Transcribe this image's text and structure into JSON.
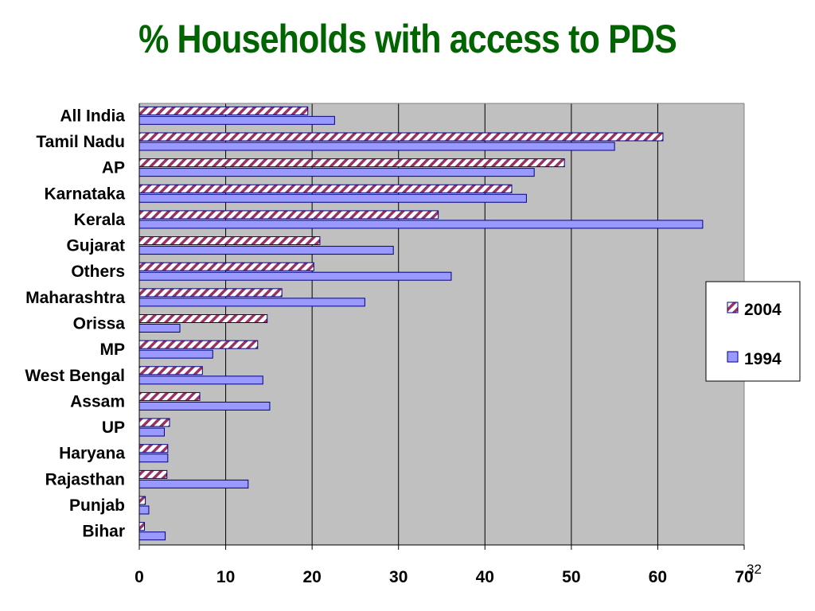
{
  "slide": {
    "title": "% Households with access to PDS",
    "page_number": "32"
  },
  "chart_data": {
    "type": "bar",
    "orientation": "horizontal",
    "title": "% Households with access to PDS",
    "xlabel": "",
    "ylabel": "",
    "xlim": [
      0,
      70
    ],
    "x_ticks": [
      0,
      10,
      20,
      30,
      40,
      50,
      60,
      70
    ],
    "grid": "vertical",
    "legend_position": "right",
    "categories": [
      "All India",
      "Tamil Nadu",
      "AP",
      "Karnataka",
      "Kerala",
      "Gujarat",
      "Others",
      "Maharashtra",
      "Orissa",
      "MP",
      "West Bengal",
      "Assam",
      "UP",
      "Haryana",
      "Rajasthan",
      "Punjab",
      "Bihar"
    ],
    "series": [
      {
        "name": "2004",
        "style": "diagonal-hatch",
        "color": "#993366",
        "values": [
          19.5,
          60.6,
          49.2,
          43.1,
          34.6,
          20.9,
          20.2,
          16.5,
          14.8,
          13.7,
          7.3,
          7.0,
          3.5,
          3.3,
          3.2,
          0.7,
          0.6
        ]
      },
      {
        "name": "1994",
        "style": "solid",
        "color": "#9999ff",
        "values": [
          22.6,
          55.0,
          45.7,
          44.8,
          65.2,
          29.4,
          36.1,
          26.1,
          4.7,
          8.5,
          14.3,
          15.1,
          2.9,
          3.3,
          12.6,
          1.1,
          3.0
        ]
      }
    ],
    "colors": {
      "plot_background": "#c0c0c0",
      "gridline": "#000000",
      "bar_outline": "#000080",
      "title": "#006400"
    }
  }
}
